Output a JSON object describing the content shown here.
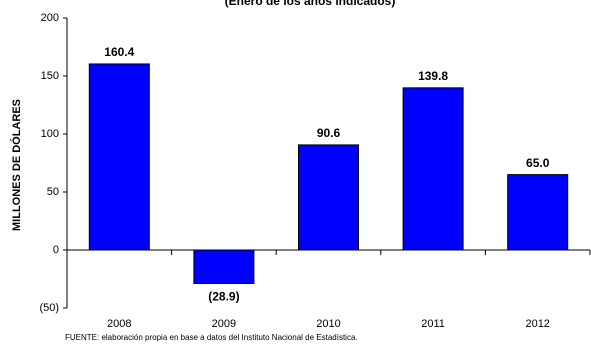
{
  "chart_data": {
    "type": "bar",
    "subtitle": "(Enero de los años indicados)",
    "y_label": "MILLONES DE DÓLARES",
    "source": "FUENTE: elaboración propia en base a datos del Instituto Nacional de Estadística.",
    "categories": [
      "2008",
      "2009",
      "2010",
      "2011",
      "2012"
    ],
    "values": [
      160.4,
      -28.9,
      90.6,
      139.8,
      65.0
    ],
    "value_labels": [
      "160.4",
      "(28.9)",
      "90.6",
      "139.8",
      "65.0"
    ],
    "color": "#0000ff",
    "ylim": [
      -50,
      200
    ],
    "yticks": [
      {
        "value": -50,
        "label": "(50)"
      },
      0,
      50,
      100,
      150,
      200
    ],
    "grid": false
  }
}
